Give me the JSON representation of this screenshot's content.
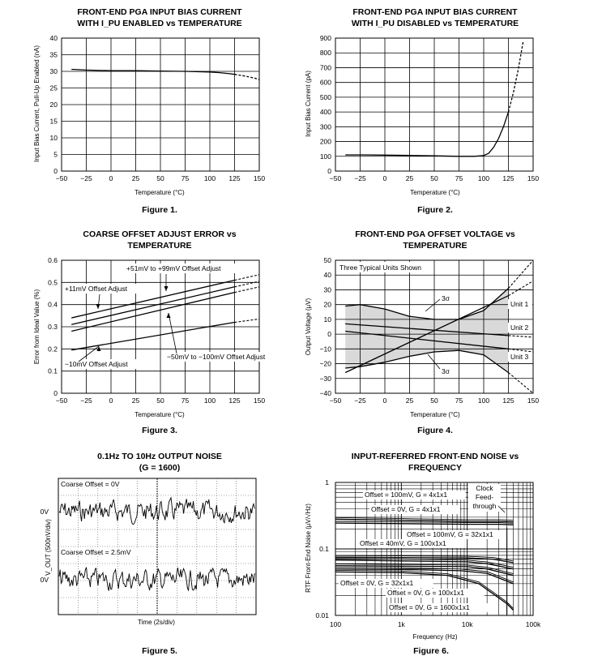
{
  "charts": [
    {
      "id": "fig1",
      "type": "line",
      "title_lines": [
        "FRONT-END PGA INPUT BIAS CURRENT",
        "WITH I_PU ENABLED vs TEMPERATURE"
      ],
      "xlabel": "Temperature (°C)",
      "ylabel": "Input Bias Current, Pull-Up Enabled (nA)",
      "figure": "Figure 1.",
      "x_ticks": [
        "−50",
        "−25",
        "0",
        "25",
        "50",
        "75",
        "100",
        "125",
        "150"
      ],
      "y_ticks": [
        "0",
        "5",
        "10",
        "15",
        "20",
        "25",
        "30",
        "35",
        "40"
      ],
      "xlim": [
        -50,
        150
      ],
      "ylim": [
        0,
        40
      ]
    },
    {
      "id": "fig2",
      "type": "line",
      "title_lines": [
        "FRONT-END PGA INPUT BIAS CURRENT",
        "WITH I_PU DISABLED vs TEMPERATURE"
      ],
      "xlabel": "Temperature (°C)",
      "ylabel": "Input Bias Current (pA)",
      "figure": "Figure 2.",
      "x_ticks": [
        "−50",
        "−25",
        "0",
        "25",
        "50",
        "75",
        "100",
        "125",
        "150"
      ],
      "y_ticks": [
        "0",
        "100",
        "200",
        "300",
        "400",
        "500",
        "600",
        "700",
        "800",
        "900"
      ],
      "xlim": [
        -50,
        150
      ],
      "ylim": [
        0,
        900
      ]
    },
    {
      "id": "fig3",
      "type": "line",
      "title_lines": [
        "COARSE OFFSET ADJUST ERROR vs",
        "TEMPERATURE"
      ],
      "xlabel": "Temperature (°C)",
      "ylabel": "Error from Ideal Value (%)",
      "figure": "Figure 3.",
      "x_ticks": [
        "−50",
        "−25",
        "0",
        "25",
        "50",
        "75",
        "100",
        "125",
        "150"
      ],
      "y_ticks": [
        "0",
        "0.1",
        "0.2",
        "0.3",
        "0.4",
        "0.5",
        "0.6"
      ],
      "xlim": [
        -50,
        150
      ],
      "ylim": [
        0,
        0.6
      ],
      "annotations": [
        "+51mV to +99mV Offset Adjust",
        "+11mV Offset Adjust",
        "−10mV Offset Adjust",
        "−50mV to −100mV Offset Adjust"
      ]
    },
    {
      "id": "fig4",
      "type": "line",
      "title_lines": [
        "FRONT-END PGA OFFSET VOLTAGE vs",
        "TEMPERATURE"
      ],
      "xlabel": "Temperature (°C)",
      "ylabel": "Output Voltage (µV)",
      "figure": "Figure 4.",
      "x_ticks": [
        "−50",
        "−25",
        "0",
        "25",
        "50",
        "75",
        "100",
        "125",
        "150"
      ],
      "y_ticks": [
        "−40",
        "−30",
        "−20",
        "−10",
        "0",
        "10",
        "20",
        "30",
        "40",
        "50"
      ],
      "xlim": [
        -50,
        150
      ],
      "ylim": [
        -40,
        50
      ],
      "annotations": [
        "Three Typical Units Shown",
        "3σ",
        "3σ",
        "Unit 1",
        "Unit 2",
        "Unit 3"
      ]
    },
    {
      "id": "fig5",
      "type": "line",
      "title_lines": [
        "0.1Hz TO 10Hz OUTPUT NOISE",
        "(G = 1600)"
      ],
      "xlabel": "Time (2s/div)",
      "ylabel": "V_OUT (500nV/div)",
      "figure": "Figure 5.",
      "trace_labels": [
        "Coarse Offset = 0V",
        "Coarse Offset = 2.5mV"
      ],
      "zero_labels": [
        "0V",
        "0V"
      ]
    },
    {
      "id": "fig6",
      "type": "line",
      "title_lines": [
        "INPUT-REFERRED FRONT-END NOISE vs",
        "FREQUENCY"
      ],
      "xlabel": "Frequency (Hz)",
      "ylabel": "RTF Front-End Noise (µV/√Hz)",
      "figure": "Figure 6.",
      "x_ticks": [
        "100",
        "1k",
        "10k",
        "100k"
      ],
      "y_ticks": [
        "0.01",
        "0.1",
        "1"
      ],
      "xlim": [
        100,
        100000
      ],
      "ylim": [
        0.01,
        1
      ],
      "annotations": [
        "Offset = 100mV, G = 4x1x1",
        "Offset = 0V, G = 4x1x1",
        "Clock",
        "Feed-",
        "through",
        "Offset = 100mV, G = 32x1x1",
        "Offset = 40mV, G = 100x1x1",
        "Offset = 0V, G = 32x1x1",
        "Offset = 0V, G = 100x1x1",
        "Offset = 0V, G = 1600x1x1"
      ]
    }
  ],
  "chart_data": [
    {
      "type": "line",
      "title": "FRONT-END PGA INPUT BIAS CURRENT WITH I_PU ENABLED vs TEMPERATURE",
      "xlabel": "Temperature (°C)",
      "ylabel": "Input Bias Current, Pull-Up Enabled (nA)",
      "xlim": [
        -50,
        150
      ],
      "ylim": [
        0,
        40
      ],
      "series": [
        {
          "name": "measured",
          "style": "solid",
          "x": [
            -40,
            -25,
            0,
            25,
            50,
            75,
            100,
            110,
            120,
            125
          ],
          "y": [
            30.6,
            30.4,
            30.2,
            30.2,
            30.1,
            30.0,
            29.8,
            29.6,
            29.3,
            29.1
          ]
        },
        {
          "name": "extrapolated",
          "style": "dashed",
          "x": [
            125,
            135,
            145,
            150
          ],
          "y": [
            29.1,
            28.6,
            28.0,
            27.5
          ]
        }
      ]
    },
    {
      "type": "line",
      "title": "FRONT-END PGA INPUT BIAS CURRENT WITH I_PU DISABLED vs TEMPERATURE",
      "xlabel": "Temperature (°C)",
      "ylabel": "Input Bias Current (pA)",
      "xlim": [
        -50,
        150
      ],
      "ylim": [
        0,
        900
      ],
      "series": [
        {
          "name": "measured",
          "style": "solid",
          "x": [
            -40,
            -20,
            0,
            25,
            50,
            75,
            90,
            100,
            105,
            110,
            115,
            120,
            125
          ],
          "y": [
            110,
            110,
            108,
            106,
            103,
            100,
            100,
            105,
            120,
            160,
            220,
            300,
            400
          ]
        },
        {
          "name": "extrapolated",
          "style": "dashed",
          "x": [
            125,
            130,
            135,
            140
          ],
          "y": [
            400,
            530,
            690,
            880
          ]
        }
      ]
    },
    {
      "type": "line",
      "title": "COARSE OFFSET ADJUST ERROR vs TEMPERATURE",
      "xlabel": "Temperature (°C)",
      "ylabel": "Error from Ideal Value (%)",
      "xlim": [
        -50,
        150
      ],
      "ylim": [
        0,
        0.6
      ],
      "series": [
        {
          "name": "+11mV Offset Adjust",
          "x": [
            -40,
            125
          ],
          "y": [
            0.34,
            0.51
          ],
          "ext": [
            150,
            0.535
          ]
        },
        {
          "name": "+51mV to +99mV Offset Adjust",
          "x": [
            -40,
            125
          ],
          "y": [
            0.31,
            0.48
          ],
          "ext": [
            150,
            0.505
          ]
        },
        {
          "name": "-50mV to -100mV Offset Adjust",
          "x": [
            -40,
            125
          ],
          "y": [
            0.28,
            0.455
          ],
          "ext": [
            150,
            0.48
          ]
        },
        {
          "name": "-10mV Offset Adjust",
          "x": [
            -40,
            125
          ],
          "y": [
            0.195,
            0.32
          ],
          "ext": [
            150,
            0.335
          ]
        }
      ]
    },
    {
      "type": "line",
      "title": "FRONT-END PGA OFFSET VOLTAGE vs TEMPERATURE",
      "xlabel": "Temperature (°C)",
      "ylabel": "Output Voltage (µV)",
      "xlim": [
        -50,
        150
      ],
      "ylim": [
        -40,
        50
      ],
      "series": [
        {
          "name": "+3σ",
          "x": [
            -40,
            -25,
            0,
            25,
            50,
            75,
            100,
            125
          ],
          "y": [
            19,
            20,
            17,
            12,
            10,
            10,
            16,
            31
          ],
          "ext_x": [
            125,
            150
          ],
          "ext_y": [
            31,
            50
          ]
        },
        {
          "name": "-3σ",
          "x": [
            -40,
            -25,
            0,
            25,
            50,
            75,
            100,
            125
          ],
          "y": [
            -23,
            -22,
            -19,
            -15,
            -12,
            -11,
            -14,
            -26
          ],
          "ext_x": [
            125,
            150
          ],
          "ext_y": [
            -26,
            -40
          ]
        },
        {
          "name": "Unit 1",
          "x": [
            -40,
            125
          ],
          "y": [
            -26,
            26
          ],
          "ext_x": [
            125,
            150
          ],
          "ext_y": [
            26,
            36
          ]
        },
        {
          "name": "Unit 2",
          "x": [
            -40,
            125
          ],
          "y": [
            7,
            -1
          ],
          "ext_x": [
            125,
            150
          ],
          "ext_y": [
            -1,
            -2
          ]
        },
        {
          "name": "Unit 3",
          "x": [
            -40,
            125
          ],
          "y": [
            2,
            -10
          ],
          "ext_x": [
            125,
            150
          ],
          "ext_y": [
            -10,
            -12
          ]
        }
      ]
    },
    {
      "type": "line",
      "title": "0.1Hz TO 10Hz OUTPUT NOISE (G = 1600)",
      "xlabel": "Time (2s/div)",
      "ylabel": "V_OUT (500nV/div)",
      "series": [
        {
          "name": "Coarse Offset = 0V"
        },
        {
          "name": "Coarse Offset = 2.5mV"
        }
      ]
    },
    {
      "type": "line",
      "title": "INPUT-REFERRED FRONT-END NOISE vs FREQUENCY",
      "xlabel": "Frequency (Hz)",
      "ylabel": "RTF Front-End Noise (µV/√Hz)",
      "xscale": "log",
      "yscale": "log",
      "xlim": [
        100,
        100000
      ],
      "ylim": [
        0.01,
        1
      ],
      "series": [
        {
          "name": "Offset = 100mV, G = 4x1x1",
          "x": [
            100,
            1000,
            10000,
            30000,
            50000
          ],
          "y": [
            0.28,
            0.27,
            0.26,
            0.26,
            0.255
          ]
        },
        {
          "name": "Offset = 0V, G = 4x1x1",
          "x": [
            100,
            1000,
            10000,
            30000,
            50000
          ],
          "y": [
            0.245,
            0.24,
            0.235,
            0.235,
            0.23
          ]
        },
        {
          "name": "Offset = 100mV, G = 32x1x1",
          "x": [
            100,
            1000,
            10000,
            25000,
            50000
          ],
          "y": [
            0.075,
            0.074,
            0.073,
            0.07,
            0.062
          ]
        },
        {
          "name": "Offset = 40mV, G = 100x1x1",
          "x": [
            100,
            1000,
            10000,
            20000,
            50000
          ],
          "y": [
            0.068,
            0.066,
            0.064,
            0.06,
            0.05
          ]
        },
        {
          "name": "Offset = 0V, G = 32x1x1",
          "x": [
            100,
            1000,
            10000,
            20000,
            50000
          ],
          "y": [
            0.056,
            0.055,
            0.054,
            0.05,
            0.04
          ]
        },
        {
          "name": "Offset = 0V, G = 100x1x1",
          "x": [
            100,
            1000,
            8000,
            20000,
            50000
          ],
          "y": [
            0.05,
            0.049,
            0.047,
            0.043,
            0.03
          ]
        },
        {
          "name": "Offset = 0V, G = 1600x1x1",
          "x": [
            100,
            1000,
            5000,
            15000,
            40000,
            50000
          ],
          "y": [
            0.045,
            0.044,
            0.04,
            0.03,
            0.015,
            0.012
          ]
        }
      ]
    }
  ]
}
